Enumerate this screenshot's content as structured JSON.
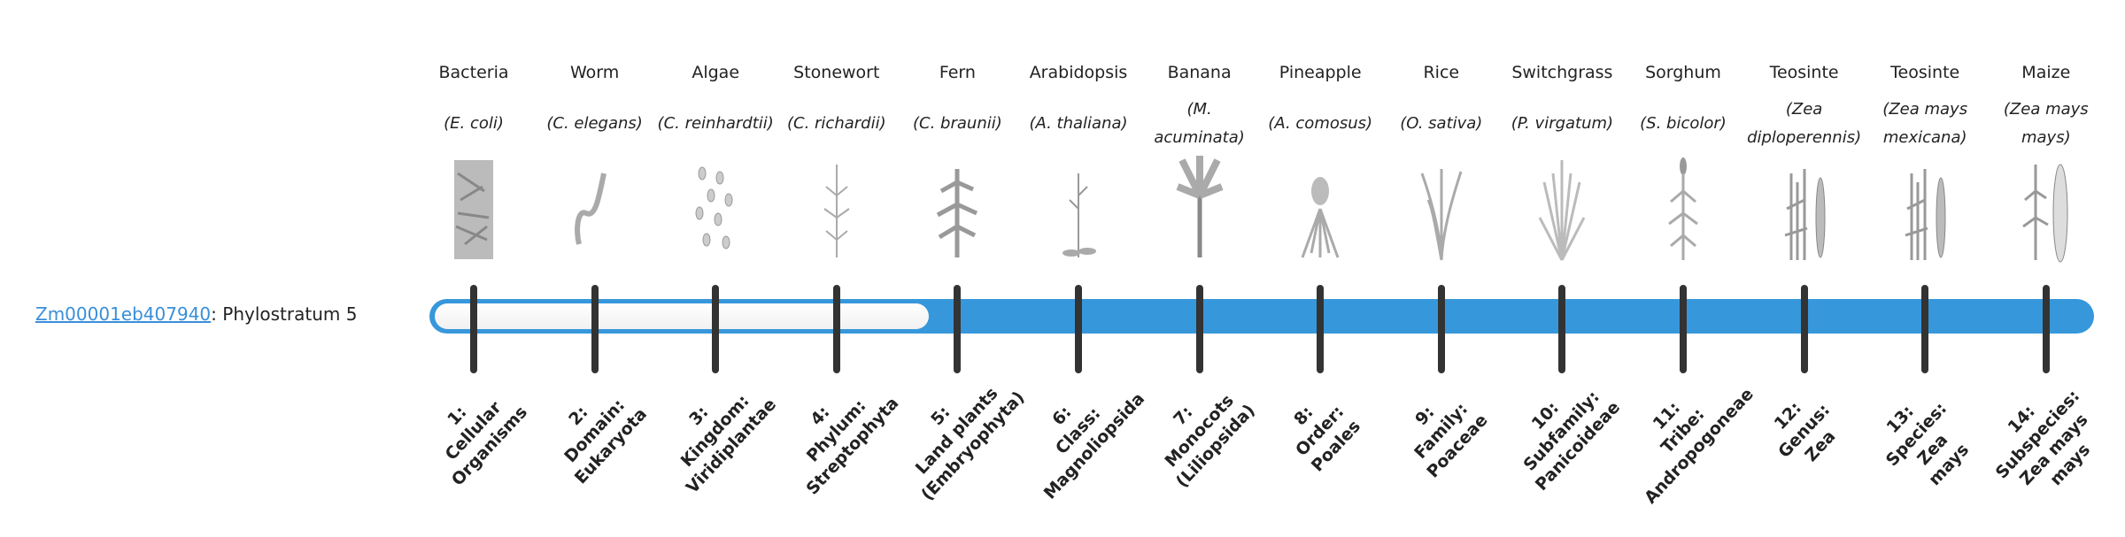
{
  "gene": {
    "id": "Zm00001eb407940",
    "suffix": ": Phylostratum 5"
  },
  "colors": {
    "bar": "#3797db",
    "fill": "#f4f4f4",
    "tick": "#333333",
    "link": "#3a8fd9"
  },
  "phylostratum_value": 5,
  "strata": [
    {
      "common": "Bacteria",
      "sci": "(E. coli)",
      "label": "1:\nCellular\nOrganisms",
      "icon": "bacteria-icon"
    },
    {
      "common": "Worm",
      "sci": "(C. elegans)",
      "label": "2:\nDomain:\nEukaryota",
      "icon": "worm-icon"
    },
    {
      "common": "Algae",
      "sci": "(C. reinhardtii)",
      "label": "3:\nKingdom:\nViridiplantae",
      "icon": "algae-icon"
    },
    {
      "common": "Stonewort",
      "sci": "(C. richardii)",
      "label": "4:\nPhylum:\nStreptophyta",
      "icon": "stonewort-icon"
    },
    {
      "common": "Fern",
      "sci": "(C. braunii)",
      "label": "5:\nLand plants\n(Embryophyta)",
      "icon": "fern-icon"
    },
    {
      "common": "Arabidopsis",
      "sci": "(A. thaliana)",
      "label": "6:\nClass:\nMagnoliopsida",
      "icon": "arabidopsis-icon"
    },
    {
      "common": "Banana",
      "sci": "(M. acuminata)",
      "label": "7:\nMonocots\n(Liliopsida)",
      "icon": "banana-icon"
    },
    {
      "common": "Pineapple",
      "sci": "(A. comosus)",
      "label": "8:\nOrder:\nPoales",
      "icon": "pineapple-icon"
    },
    {
      "common": "Rice",
      "sci": "(O. sativa)",
      "label": "9:\nFamily:\nPoaceae",
      "icon": "rice-icon"
    },
    {
      "common": "Switchgrass",
      "sci": "(P. virgatum)",
      "label": "10:\nSubfamily:\nPanicoideae",
      "icon": "switchgrass-icon"
    },
    {
      "common": "Sorghum",
      "sci": "(S. bicolor)",
      "label": "11:\nTribe:\nAndropogoneae",
      "icon": "sorghum-icon"
    },
    {
      "common": "Teosinte",
      "sci": "(Zea diploperennis)",
      "label": "12:\nGenus:\nZea",
      "icon": "teosinte-icon"
    },
    {
      "common": "Teosinte",
      "sci": "(Zea mays mexicana)",
      "label": "13:\nSpecies:\nZea\nmays",
      "icon": "teosinte-icon"
    },
    {
      "common": "Maize",
      "sci": "(Zea mays mays)",
      "label": "14:\nSubspecies:\nZea mays\nmays",
      "icon": "maize-icon"
    }
  ]
}
